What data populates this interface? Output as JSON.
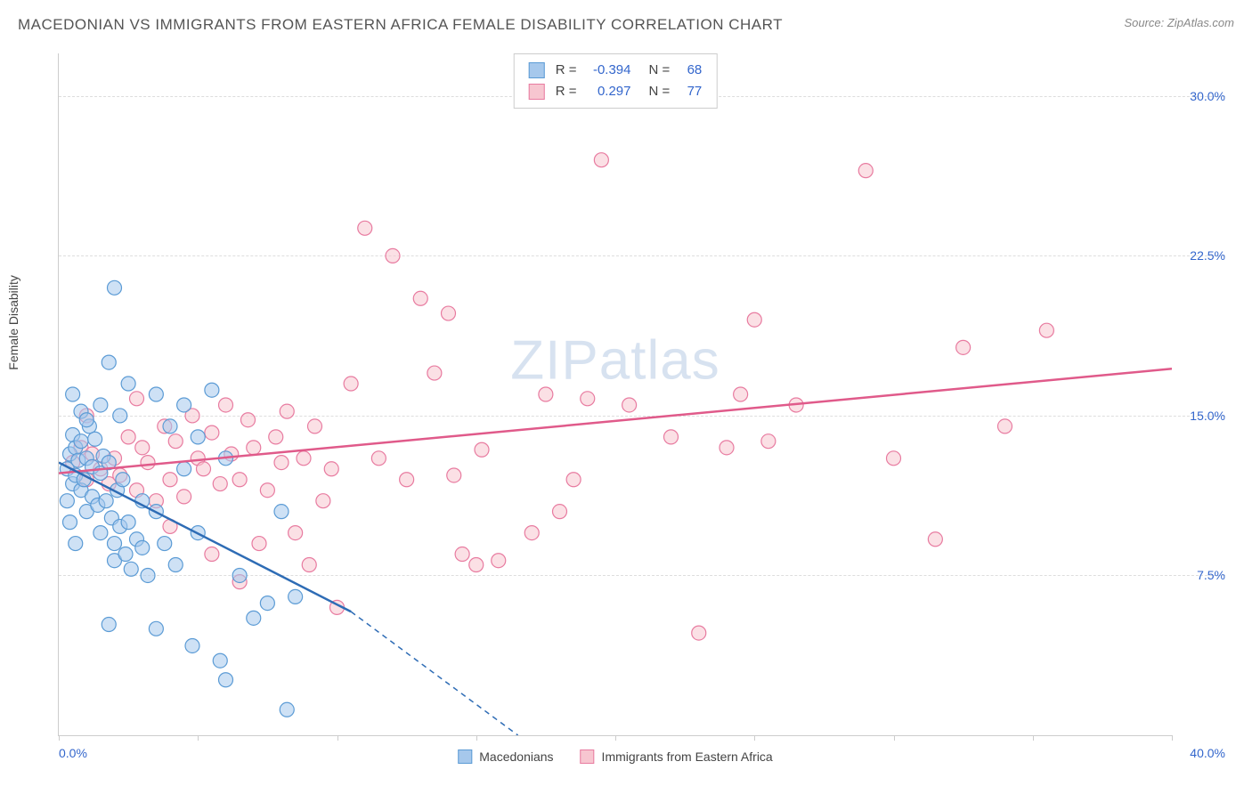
{
  "header": {
    "title": "MACEDONIAN VS IMMIGRANTS FROM EASTERN AFRICA FEMALE DISABILITY CORRELATION CHART",
    "source_prefix": "Source: ",
    "source": "ZipAtlas.com"
  },
  "ylabel": "Female Disability",
  "watermark": "ZIPatlas",
  "axes": {
    "xlim": [
      0,
      40
    ],
    "ylim": [
      0,
      32
    ],
    "x_origin_label": "0.0%",
    "x_max_label": "40.0%",
    "yticks": [
      {
        "v": 7.5,
        "label": "7.5%"
      },
      {
        "v": 15.0,
        "label": "15.0%"
      },
      {
        "v": 22.5,
        "label": "22.5%"
      },
      {
        "v": 30.0,
        "label": "30.0%"
      }
    ],
    "xticks": [
      0,
      5,
      10,
      15,
      20,
      25,
      30,
      35,
      40
    ]
  },
  "series": {
    "blue": {
      "name": "Macedonians",
      "fill": "#a6c8ec",
      "stroke": "#5b9bd5",
      "fill_opacity": 0.55,
      "marker_r": 8,
      "trend": {
        "color": "#2e6cb5",
        "width": 2.5,
        "x1": 0,
        "y1": 12.8,
        "x2": 10.5,
        "y2": 5.8,
        "dash_to_x": 16.5,
        "dash_to_y": 0
      },
      "stats": {
        "R": "-0.394",
        "N": "68"
      },
      "points": [
        [
          0.3,
          12.5
        ],
        [
          0.4,
          13.2
        ],
        [
          0.5,
          11.8
        ],
        [
          0.5,
          14.1
        ],
        [
          0.6,
          12.2
        ],
        [
          0.6,
          13.5
        ],
        [
          0.7,
          12.9
        ],
        [
          0.8,
          11.5
        ],
        [
          0.8,
          13.8
        ],
        [
          0.9,
          12.0
        ],
        [
          1.0,
          13.0
        ],
        [
          1.0,
          10.5
        ],
        [
          1.1,
          14.5
        ],
        [
          1.2,
          11.2
        ],
        [
          1.2,
          12.6
        ],
        [
          1.3,
          13.9
        ],
        [
          1.4,
          10.8
        ],
        [
          1.5,
          12.3
        ],
        [
          1.5,
          9.5
        ],
        [
          1.6,
          13.1
        ],
        [
          1.7,
          11.0
        ],
        [
          1.8,
          12.8
        ],
        [
          1.9,
          10.2
        ],
        [
          2.0,
          9.0
        ],
        [
          2.0,
          8.2
        ],
        [
          2.1,
          11.5
        ],
        [
          2.2,
          9.8
        ],
        [
          2.3,
          12.0
        ],
        [
          2.4,
          8.5
        ],
        [
          2.5,
          10.0
        ],
        [
          2.6,
          7.8
        ],
        [
          2.8,
          9.2
        ],
        [
          3.0,
          8.8
        ],
        [
          3.0,
          11.0
        ],
        [
          3.2,
          7.5
        ],
        [
          3.5,
          10.5
        ],
        [
          3.5,
          16.0
        ],
        [
          3.8,
          9.0
        ],
        [
          4.0,
          14.5
        ],
        [
          4.2,
          8.0
        ],
        [
          4.5,
          12.5
        ],
        [
          4.5,
          15.5
        ],
        [
          5.0,
          14.0
        ],
        [
          5.0,
          9.5
        ],
        [
          5.5,
          16.2
        ],
        [
          5.8,
          3.5
        ],
        [
          6.0,
          13.0
        ],
        [
          6.0,
          2.6
        ],
        [
          6.5,
          7.5
        ],
        [
          7.0,
          5.5
        ],
        [
          7.5,
          6.2
        ],
        [
          8.0,
          10.5
        ],
        [
          8.2,
          1.2
        ],
        [
          8.5,
          6.5
        ],
        [
          1.8,
          17.5
        ],
        [
          2.2,
          15.0
        ],
        [
          2.5,
          16.5
        ],
        [
          2.0,
          21.0
        ],
        [
          1.5,
          15.5
        ],
        [
          0.8,
          15.2
        ],
        [
          0.5,
          16.0
        ],
        [
          1.0,
          14.8
        ],
        [
          1.8,
          5.2
        ],
        [
          3.5,
          5.0
        ],
        [
          4.8,
          4.2
        ],
        [
          0.6,
          9.0
        ],
        [
          0.4,
          10.0
        ],
        [
          0.3,
          11.0
        ]
      ]
    },
    "pink": {
      "name": "Immigrants from Eastern Africa",
      "fill": "#f7c6d0",
      "stroke": "#e87ba0",
      "fill_opacity": 0.55,
      "marker_r": 8,
      "trend": {
        "color": "#e05a8a",
        "width": 2.5,
        "x1": 0,
        "y1": 12.3,
        "x2": 40,
        "y2": 17.2
      },
      "stats": {
        "R": "0.297",
        "N": "77"
      },
      "points": [
        [
          0.5,
          12.8
        ],
        [
          0.8,
          13.5
        ],
        [
          1.0,
          12.0
        ],
        [
          1.2,
          13.2
        ],
        [
          1.5,
          12.5
        ],
        [
          1.8,
          11.8
        ],
        [
          2.0,
          13.0
        ],
        [
          2.2,
          12.2
        ],
        [
          2.5,
          14.0
        ],
        [
          2.8,
          11.5
        ],
        [
          3.0,
          13.5
        ],
        [
          3.2,
          12.8
        ],
        [
          3.5,
          11.0
        ],
        [
          3.8,
          14.5
        ],
        [
          4.0,
          12.0
        ],
        [
          4.2,
          13.8
        ],
        [
          4.5,
          11.2
        ],
        [
          4.8,
          15.0
        ],
        [
          5.0,
          13.0
        ],
        [
          5.2,
          12.5
        ],
        [
          5.5,
          14.2
        ],
        [
          5.8,
          11.8
        ],
        [
          6.0,
          15.5
        ],
        [
          6.2,
          13.2
        ],
        [
          6.5,
          12.0
        ],
        [
          6.8,
          14.8
        ],
        [
          7.0,
          13.5
        ],
        [
          7.5,
          11.5
        ],
        [
          7.8,
          14.0
        ],
        [
          8.0,
          12.8
        ],
        [
          8.2,
          15.2
        ],
        [
          8.5,
          9.5
        ],
        [
          8.8,
          13.0
        ],
        [
          9.0,
          8.0
        ],
        [
          9.2,
          14.5
        ],
        [
          9.5,
          11.0
        ],
        [
          9.8,
          12.5
        ],
        [
          10.0,
          6.0
        ],
        [
          10.5,
          16.5
        ],
        [
          11.0,
          23.8
        ],
        [
          11.5,
          13.0
        ],
        [
          12.0,
          22.5
        ],
        [
          12.5,
          12.0
        ],
        [
          13.0,
          20.5
        ],
        [
          13.5,
          17.0
        ],
        [
          14.0,
          19.8
        ],
        [
          14.2,
          12.2
        ],
        [
          14.5,
          8.5
        ],
        [
          15.0,
          8.0
        ],
        [
          15.2,
          13.4
        ],
        [
          15.8,
          8.2
        ],
        [
          17.0,
          9.5
        ],
        [
          17.5,
          16.0
        ],
        [
          18.0,
          10.5
        ],
        [
          18.5,
          12.0
        ],
        [
          19.0,
          15.8
        ],
        [
          19.5,
          27.0
        ],
        [
          20.5,
          15.5
        ],
        [
          22.0,
          14.0
        ],
        [
          23.0,
          4.8
        ],
        [
          24.0,
          13.5
        ],
        [
          24.5,
          16.0
        ],
        [
          25.0,
          19.5
        ],
        [
          25.5,
          13.8
        ],
        [
          26.5,
          15.5
        ],
        [
          29.0,
          26.5
        ],
        [
          30.0,
          13.0
        ],
        [
          31.5,
          9.2
        ],
        [
          32.5,
          18.2
        ],
        [
          34.0,
          14.5
        ],
        [
          35.5,
          19.0
        ],
        [
          4.0,
          9.8
        ],
        [
          5.5,
          8.5
        ],
        [
          6.5,
          7.2
        ],
        [
          7.2,
          9.0
        ],
        [
          1.0,
          15.0
        ],
        [
          2.8,
          15.8
        ]
      ]
    }
  },
  "legend_bottom": [
    {
      "swatch_fill": "#a6c8ec",
      "swatch_stroke": "#5b9bd5",
      "label": "Macedonians"
    },
    {
      "swatch_fill": "#f7c6d0",
      "swatch_stroke": "#e87ba0",
      "label": "Immigrants from Eastern Africa"
    }
  ],
  "stats_box": {
    "R_label": "R =",
    "N_label": "N ="
  }
}
